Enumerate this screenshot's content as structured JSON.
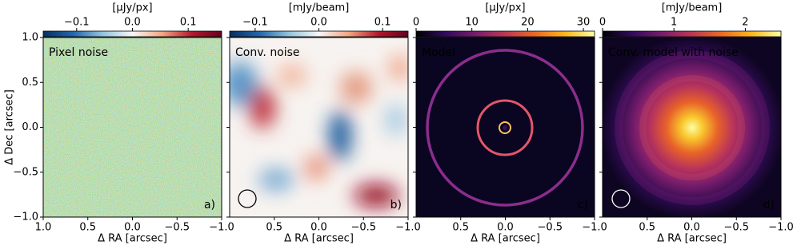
{
  "chart_data": [
    {
      "type": "image",
      "title": "Pixel noise",
      "panel_label": "a)",
      "xlabel": "Δ RA [arcsec]",
      "ylabel": "Δ Dec [arcsec]",
      "xlim": [
        1,
        -1
      ],
      "ylim": [
        -1,
        1
      ],
      "xticks": [
        {
          "value": 1,
          "label": "1.0"
        },
        0.5,
        {
          "value": 0,
          "label": "0.0"
        },
        {
          "value": -0.5,
          "label": "−0.5"
        },
        {
          "value": -1,
          "label": "−1.0"
        }
      ],
      "yticks": [
        {
          "value": 1,
          "label": "1.0"
        },
        0.5,
        {
          "value": 0,
          "label": "0.0"
        },
        {
          "value": -0.5,
          "label": "−0.5"
        },
        {
          "value": -1,
          "label": "−1.0"
        }
      ],
      "colorbar": {
        "label": "[μJy/px]",
        "colormap": "RdBu_r",
        "lim": [
          -0.16,
          0.16
        ],
        "ticks": [
          {
            "value": -0.1,
            "label": "−0.1"
          },
          {
            "value": 0,
            "label": "0.0"
          },
          0.1
        ]
      }
    },
    {
      "type": "image",
      "title": "Conv. noise",
      "panel_label": "b)",
      "xlabel": "Δ RA [arcsec]",
      "xlim": [
        1,
        -1
      ],
      "ylim": [
        -1,
        1
      ],
      "xticks": [
        {
          "value": 0.5,
          "label": "0.5"
        },
        {
          "value": 0,
          "label": "0.0"
        },
        {
          "value": -0.5,
          "label": "−0.5"
        },
        {
          "value": -1,
          "label": "−1.0"
        }
      ],
      "colorbar": {
        "label": "[mJy/beam]",
        "colormap": "RdBu_r",
        "lim": [
          -0.14,
          0.14
        ],
        "ticks": [
          {
            "value": -0.1,
            "label": "−0.1"
          },
          {
            "value": 0,
            "label": "0.0"
          },
          0.1
        ]
      }
    },
    {
      "type": "image",
      "title": "Model",
      "panel_label": "c)",
      "xlabel": "Δ RA [arcsec]",
      "xlim": [
        1,
        -1
      ],
      "ylim": [
        -1,
        1
      ],
      "xticks": [
        {
          "value": 0.5,
          "label": "0.5"
        },
        {
          "value": 0,
          "label": "0.0"
        },
        {
          "value": -0.5,
          "label": "−0.5"
        },
        {
          "value": -1,
          "label": "−1.0"
        }
      ],
      "colorbar": {
        "label": "[μJy/px]",
        "colormap": "inferno",
        "lim": [
          0,
          32
        ],
        "ticks": [
          0,
          10,
          20,
          30
        ]
      }
    },
    {
      "type": "image",
      "title": "Conv. model with noise",
      "panel_label": "d)",
      "xlabel": "Δ RA [arcsec]",
      "xlim": [
        1,
        -1
      ],
      "ylim": [
        -1,
        1
      ],
      "xticks": [
        {
          "value": 0.5,
          "label": "0.5"
        },
        {
          "value": 0,
          "label": "0.0"
        },
        {
          "value": -0.5,
          "label": "−0.5"
        },
        {
          "value": -1,
          "label": "−1.0"
        }
      ],
      "colorbar": {
        "label": "[mJy/beam]",
        "colormap": "inferno",
        "lim": [
          0,
          2.5
        ],
        "ticks": [
          0,
          1,
          2
        ]
      }
    }
  ]
}
